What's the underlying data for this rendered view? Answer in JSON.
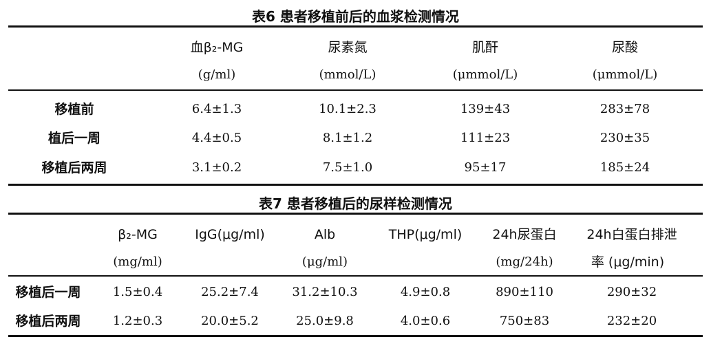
{
  "table6": {
    "title": "表6 患者移植前后的血浆检测情况",
    "headers": [
      {
        "name": "血β₂-MG",
        "unit": "(g/ml)"
      },
      {
        "name": "尿素氮",
        "unit": "(mmol/L)"
      },
      {
        "name": "肌酐",
        "unit": "(μmmol/L)"
      },
      {
        "name": "尿酸",
        "unit": "(μmmol/L)"
      }
    ],
    "rows": [
      {
        "label": "移植前",
        "values": [
          "6.4±1.3",
          "10.1±2.3",
          "139±43",
          "283±78"
        ]
      },
      {
        "label": "植后一周",
        "values": [
          "4.4±0.5",
          "8.1±1.2",
          "111±23",
          "230±35"
        ]
      },
      {
        "label": "移植后两周",
        "values": [
          "3.1±0.2",
          "7.5±1.0",
          "95±17",
          "185±24"
        ]
      }
    ]
  },
  "table7": {
    "title": "表7 患者移植后的尿样检测情况",
    "headers": [
      {
        "name": "β₂-MG",
        "unit": "(mg/ml)"
      },
      {
        "name": "IgG(μg/ml)",
        "unit": ""
      },
      {
        "name": "Alb",
        "unit": "(μg/ml)"
      },
      {
        "name": "THP(μg/ml)",
        "unit": ""
      },
      {
        "name": "24h尿蛋白",
        "unit": "(mg/24h)"
      },
      {
        "name": "24h白蛋白排泄",
        "unit": "率 (μg/min)"
      }
    ],
    "rows": [
      {
        "label": "移植后一周",
        "values": [
          "1.5±0.4",
          "25.2±7.4",
          "31.2±10.3",
          "4.9±0.8",
          "890±110",
          "290±32"
        ]
      },
      {
        "label": "移植后两周",
        "values": [
          "1.2±0.3",
          "20.0±5.2",
          "25.0±9.8",
          "4.0±0.6",
          "750±83",
          "232±20"
        ]
      }
    ]
  }
}
